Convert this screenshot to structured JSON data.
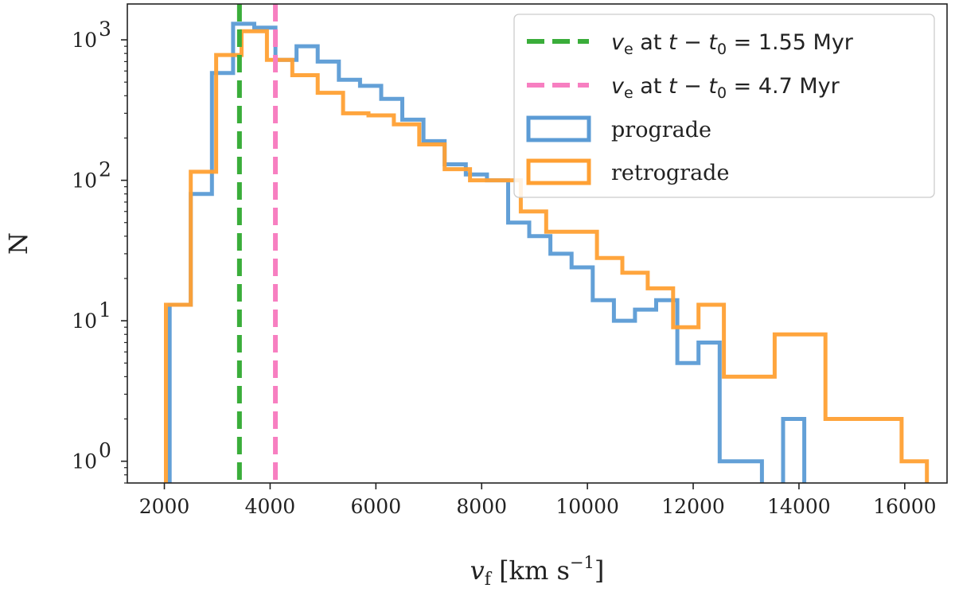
{
  "chart_data": {
    "type": "histogram",
    "title": "",
    "xlabel": {
      "main": "v",
      "subscript": "f",
      "unit": "[km s",
      "exp": "−1",
      "close": "]"
    },
    "ylabel": "N",
    "xlim": [
      1300,
      16800
    ],
    "ylim": [
      0.7,
      1800
    ],
    "yscale": "log",
    "x_ticks": [
      2000,
      4000,
      6000,
      8000,
      10000,
      12000,
      14000,
      16000
    ],
    "x_tick_labels": [
      "2000",
      "4000",
      "6000",
      "8000",
      "10000",
      "12000",
      "14000",
      "16000"
    ],
    "y_ticks": [
      1,
      10,
      100,
      1000
    ],
    "y_tick_labels": [
      {
        "base": "10",
        "exp": "0"
      },
      {
        "base": "10",
        "exp": "1"
      },
      {
        "base": "10",
        "exp": "2"
      },
      {
        "base": "10",
        "exp": "3"
      }
    ],
    "series": [
      {
        "name": "prograde",
        "color": "#5b9bd5",
        "edges": [
          2100,
          2500,
          2900,
          3300,
          3700,
          4100,
          4500,
          4900,
          5300,
          5700,
          6100,
          6500,
          6900,
          7300,
          7700,
          8100,
          8500,
          8900,
          9300,
          9700,
          10100,
          10500,
          10900,
          11300,
          11700,
          12100,
          12500,
          12900,
          13300,
          13700,
          14100
        ],
        "counts": [
          13,
          80,
          580,
          1300,
          1220,
          720,
          900,
          700,
          520,
          470,
          380,
          270,
          190,
          130,
          110,
          100,
          50,
          40,
          30,
          24,
          14,
          10,
          12,
          14,
          5,
          7,
          1,
          1,
          0,
          2
        ]
      },
      {
        "name": "retrograde",
        "color": "#ffa033",
        "edges": [
          2030,
          2500,
          2980,
          3460,
          3940,
          4420,
          4900,
          5380,
          5860,
          6340,
          6820,
          7300,
          7780,
          8260,
          8740,
          9220,
          9700,
          10180,
          10660,
          11140,
          11620,
          12100,
          12580,
          13060,
          13540,
          14020,
          14500,
          14980,
          15460,
          15940,
          16420
        ],
        "counts": [
          13,
          115,
          780,
          1150,
          720,
          560,
          420,
          300,
          290,
          250,
          180,
          120,
          100,
          100,
          60,
          43,
          43,
          28,
          22,
          17,
          9,
          13,
          4,
          4,
          8,
          8,
          2,
          2,
          2,
          1
        ]
      }
    ],
    "vlines": [
      {
        "x": 3420,
        "color": "#3aad3a",
        "label_prefix": "v",
        "label_sub": "e",
        "label_text": " at ",
        "label_math": "t − t",
        "label_math_sub": "0",
        "label_value": " = 1.55 Myr"
      },
      {
        "x": 4100,
        "color": "#f77fc1",
        "label_prefix": "v",
        "label_sub": "e",
        "label_text": " at ",
        "label_math": "t − t",
        "label_math_sub": "0",
        "label_value": " = 4.7 Myr"
      }
    ],
    "legend_position": "top-right"
  }
}
